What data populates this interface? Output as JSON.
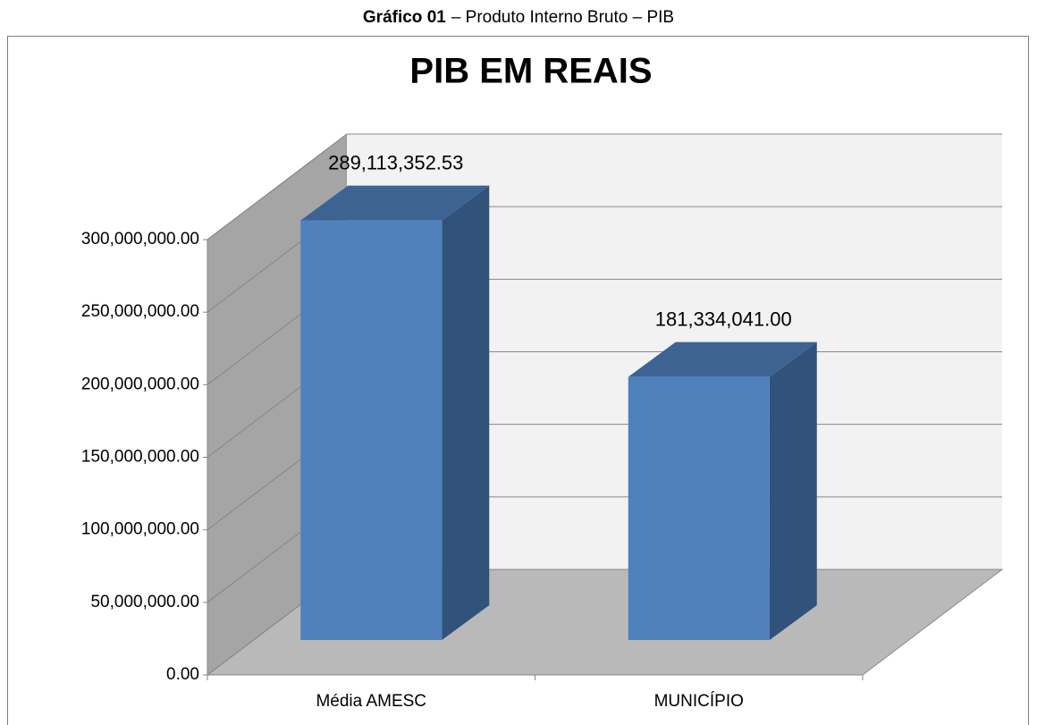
{
  "caption": {
    "label": "Gráfico 01",
    "text": "– Produto Interno Bruto – PIB"
  },
  "chart_data": {
    "type": "bar3d",
    "title": "PIB EM REAIS",
    "categories": [
      "Média AMESC",
      "MUNICÍPIO"
    ],
    "values": [
      289113352.53,
      181334041.0
    ],
    "value_labels": [
      "289,113,352.53",
      "181,334,041.00"
    ],
    "color": "#4f81bd",
    "ylim": [
      0,
      300000000
    ],
    "yticks": [
      {
        "value": 0,
        "label": "0.00"
      },
      {
        "value": 50000000,
        "label": "50,000,000.00"
      },
      {
        "value": 100000000,
        "label": "100,000,000.00"
      },
      {
        "value": 150000000,
        "label": "150,000,000.00"
      },
      {
        "value": 200000000,
        "label": "200,000,000.00"
      },
      {
        "value": 250000000,
        "label": "250,000,000.00"
      },
      {
        "value": 300000000,
        "label": "300,000,000.00"
      }
    ],
    "grid": true
  }
}
